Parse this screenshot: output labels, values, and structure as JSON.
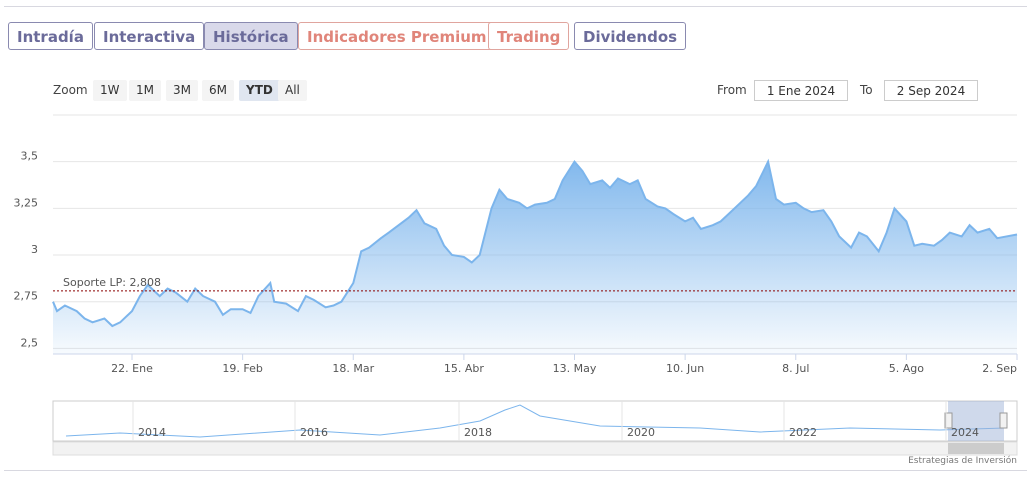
{
  "tabs": [
    "Intradía",
    "Interactiva",
    "Histórica",
    "Indicadores Premium",
    "Trading",
    "Dividendos"
  ],
  "zoom": {
    "label": "Zoom",
    "buttons": [
      "1W",
      "1M",
      "3M",
      "6M",
      "YTD",
      "All"
    ]
  },
  "range": {
    "from_label": "From",
    "from": "1 Ene 2024",
    "to_label": "To",
    "to": "2 Sep 2024"
  },
  "navigator": {
    "labels": [
      "2014",
      "2016",
      "2018",
      "2020",
      "2022",
      "2024"
    ]
  },
  "credit": "Estrategias de Inversión",
  "chart_data": {
    "type": "area",
    "color": "#7cb5ec",
    "grid": true,
    "x": [
      "2024-01-02",
      "2024-01-03",
      "2024-01-05",
      "2024-01-08",
      "2024-01-10",
      "2024-01-12",
      "2024-01-15",
      "2024-01-17",
      "2024-01-19",
      "2024-01-22",
      "2024-01-24",
      "2024-01-26",
      "2024-01-29",
      "2024-01-31",
      "2024-02-02",
      "2024-02-05",
      "2024-02-07",
      "2024-02-09",
      "2024-02-12",
      "2024-02-14",
      "2024-02-16",
      "2024-02-19",
      "2024-02-21",
      "2024-02-23",
      "2024-02-26",
      "2024-02-27",
      "2024-03-01",
      "2024-03-04",
      "2024-03-06",
      "2024-03-08",
      "2024-03-11",
      "2024-03-13",
      "2024-03-15",
      "2024-03-18",
      "2024-03-20",
      "2024-03-22",
      "2024-03-25",
      "2024-03-27",
      "2024-04-01",
      "2024-04-03",
      "2024-04-05",
      "2024-04-08",
      "2024-04-10",
      "2024-04-12",
      "2024-04-15",
      "2024-04-17",
      "2024-04-19",
      "2024-04-22",
      "2024-04-24",
      "2024-04-26",
      "2024-04-29",
      "2024-05-01",
      "2024-05-03",
      "2024-05-06",
      "2024-05-08",
      "2024-05-10",
      "2024-05-13",
      "2024-05-15",
      "2024-05-17",
      "2024-05-20",
      "2024-05-22",
      "2024-05-24",
      "2024-05-27",
      "2024-05-29",
      "2024-05-31",
      "2024-06-03",
      "2024-06-05",
      "2024-06-07",
      "2024-06-10",
      "2024-06-12",
      "2024-06-14",
      "2024-06-17",
      "2024-06-19",
      "2024-06-21",
      "2024-06-24",
      "2024-06-26",
      "2024-06-28",
      "2024-07-01",
      "2024-07-03",
      "2024-07-05",
      "2024-07-08",
      "2024-07-10",
      "2024-07-12",
      "2024-07-15",
      "2024-07-17",
      "2024-07-19",
      "2024-07-22",
      "2024-07-24",
      "2024-07-26",
      "2024-07-29",
      "2024-07-31",
      "2024-08-02",
      "2024-08-05",
      "2024-08-07",
      "2024-08-09",
      "2024-08-12",
      "2024-08-14",
      "2024-08-16",
      "2024-08-19",
      "2024-08-21",
      "2024-08-23",
      "2024-08-26",
      "2024-08-28",
      "2024-09-02"
    ],
    "values": [
      2.75,
      2.7,
      2.73,
      2.7,
      2.66,
      2.64,
      2.66,
      2.62,
      2.64,
      2.7,
      2.78,
      2.84,
      2.78,
      2.82,
      2.8,
      2.75,
      2.82,
      2.78,
      2.75,
      2.68,
      2.71,
      2.71,
      2.69,
      2.78,
      2.85,
      2.75,
      2.74,
      2.7,
      2.78,
      2.76,
      2.72,
      2.73,
      2.75,
      2.85,
      3.02,
      3.04,
      3.09,
      3.12,
      3.2,
      3.24,
      3.17,
      3.14,
      3.05,
      3.0,
      2.99,
      2.96,
      3.0,
      3.25,
      3.35,
      3.3,
      3.28,
      3.25,
      3.27,
      3.28,
      3.3,
      3.4,
      3.5,
      3.45,
      3.38,
      3.4,
      3.36,
      3.41,
      3.38,
      3.4,
      3.3,
      3.26,
      3.25,
      3.22,
      3.18,
      3.2,
      3.14,
      3.16,
      3.18,
      3.22,
      3.28,
      3.32,
      3.37,
      3.5,
      3.3,
      3.27,
      3.28,
      3.25,
      3.23,
      3.24,
      3.18,
      3.1,
      3.04,
      3.12,
      3.1,
      3.02,
      3.12,
      3.25,
      3.18,
      3.05,
      3.06,
      3.05,
      3.08,
      3.12,
      3.1,
      3.16,
      3.12,
      3.14,
      3.09,
      3.11
    ],
    "xlim": [
      "2024-01-02",
      "2024-09-02"
    ],
    "xticks": [
      {
        "value": "2024-01-22",
        "label": "22. Ene"
      },
      {
        "value": "2024-02-19",
        "label": "19. Feb"
      },
      {
        "value": "2024-03-18",
        "label": "18. Mar"
      },
      {
        "value": "2024-04-15",
        "label": "15. Abr"
      },
      {
        "value": "2024-05-13",
        "label": "13. May"
      },
      {
        "value": "2024-06-10",
        "label": "10. Jun"
      },
      {
        "value": "2024-07-08",
        "label": "8. Jul"
      },
      {
        "value": "2024-08-05",
        "label": "5. Ago"
      },
      {
        "value": "2024-09-02",
        "label": "2. Sep"
      }
    ],
    "ylim": [
      2.47,
      3.75
    ],
    "yticks": [
      {
        "value": 2.5,
        "label": "2,5"
      },
      {
        "value": 2.75,
        "label": "2,75"
      },
      3,
      {
        "value": 3.25,
        "label": "3,25"
      },
      {
        "value": 3.5,
        "label": "3,5"
      }
    ],
    "annotations": [
      {
        "value": 2.808,
        "label": "Soporte LP: 2,808"
      }
    ]
  }
}
